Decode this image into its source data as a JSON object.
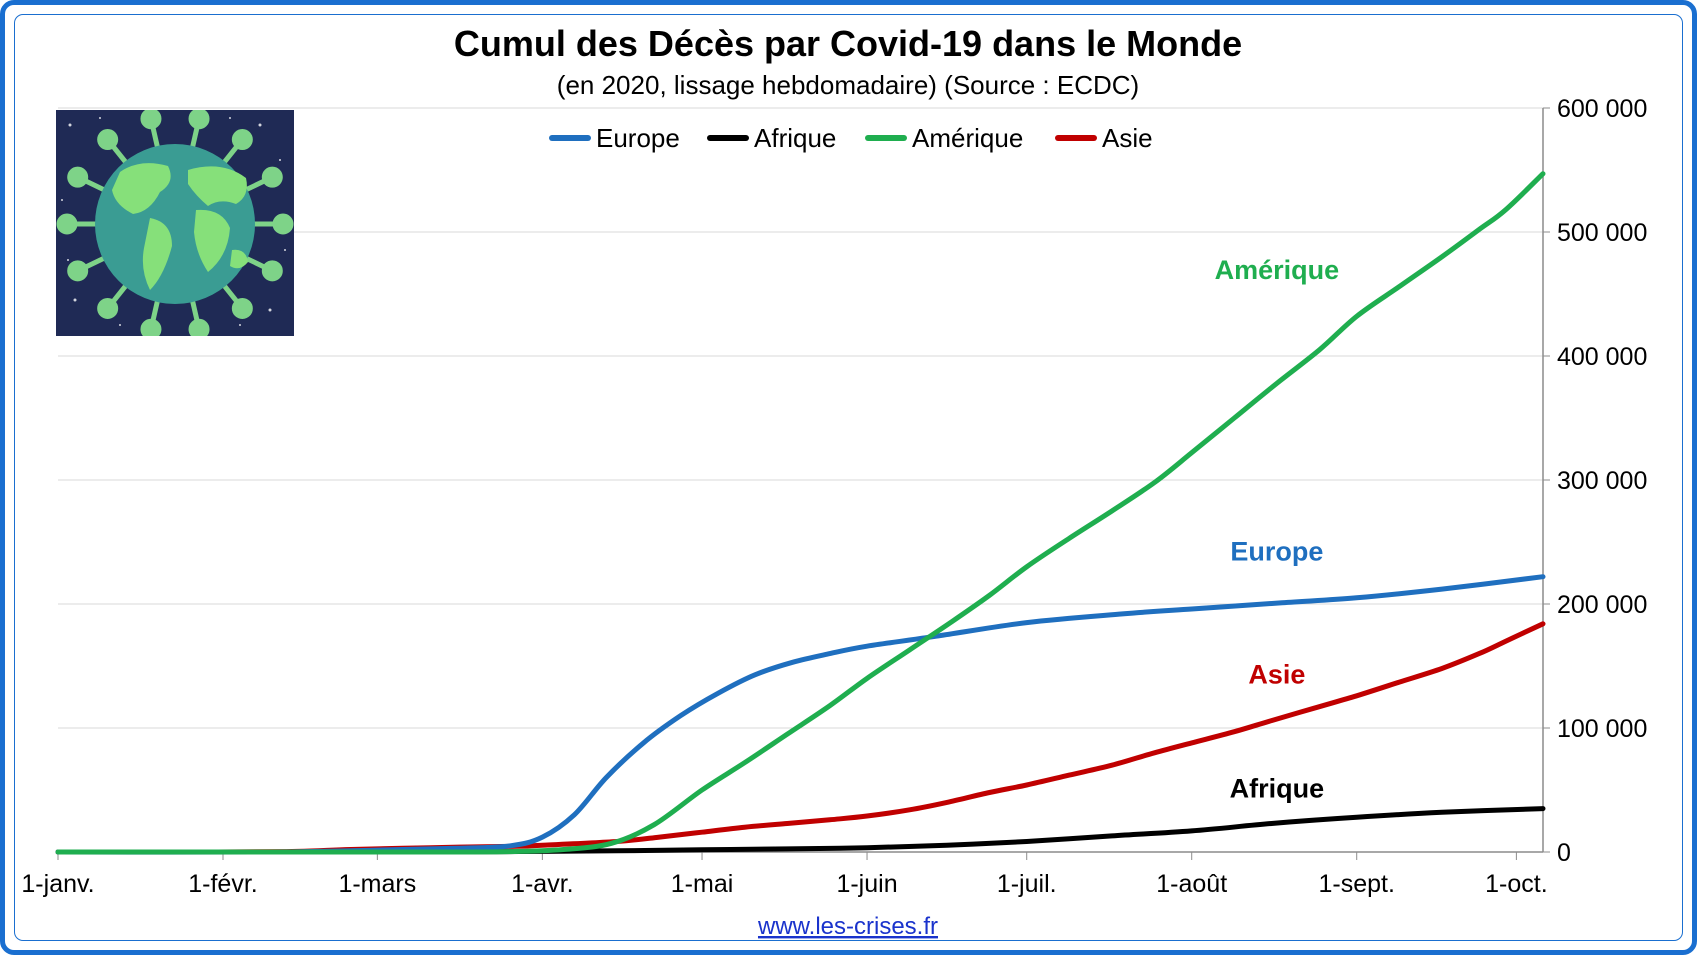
{
  "chart_data": {
    "type": "line",
    "title": "Cumul des Décès par Covid-19 dans le Monde",
    "subtitle": "(en 2020, lissage hebdomadaire) (Source : ECDC)",
    "xlabel": "",
    "ylabel": "",
    "x_ticks": [
      "1-janv.",
      "1-févr.",
      "1-mars",
      "1-avr.",
      "1-mai",
      "1-juin",
      "1-juil.",
      "1-août",
      "1-sept.",
      "1-oct."
    ],
    "x_tick_days": [
      0,
      31,
      60,
      91,
      121,
      152,
      182,
      213,
      244,
      274
    ],
    "x_range_days": [
      0,
      279
    ],
    "ylim": [
      0,
      600000
    ],
    "y_ticks": [
      0,
      100000,
      200000,
      300000,
      400000,
      500000,
      600000
    ],
    "y_tick_labels": [
      "0",
      "100 000",
      "200 000",
      "300 000",
      "400 000",
      "500 000",
      "600 000"
    ],
    "y_axis_side": "right",
    "grid": true,
    "legend_position": "top-center",
    "series": [
      {
        "name": "Europe",
        "color": "#1f6fbf",
        "label_pos_day": 229,
        "label_pos_value": 235000,
        "points": [
          [
            0,
            0
          ],
          [
            40,
            0
          ],
          [
            60,
            1500
          ],
          [
            75,
            3000
          ],
          [
            85,
            5000
          ],
          [
            91,
            12000
          ],
          [
            97,
            30000
          ],
          [
            103,
            60000
          ],
          [
            110,
            88000
          ],
          [
            117,
            110000
          ],
          [
            124,
            128000
          ],
          [
            131,
            143000
          ],
          [
            138,
            153000
          ],
          [
            145,
            160000
          ],
          [
            152,
            166000
          ],
          [
            165,
            174000
          ],
          [
            182,
            185000
          ],
          [
            200,
            192000
          ],
          [
            213,
            196000
          ],
          [
            230,
            201000
          ],
          [
            244,
            205000
          ],
          [
            260,
            212000
          ],
          [
            279,
            222000
          ]
        ]
      },
      {
        "name": "Afrique",
        "color": "#000000",
        "label_pos_day": 229,
        "label_pos_value": 44000,
        "points": [
          [
            0,
            0
          ],
          [
            60,
            0
          ],
          [
            80,
            200
          ],
          [
            91,
            500
          ],
          [
            105,
            1000
          ],
          [
            121,
            1800
          ],
          [
            137,
            2500
          ],
          [
            152,
            3500
          ],
          [
            167,
            5500
          ],
          [
            182,
            8500
          ],
          [
            198,
            13000
          ],
          [
            213,
            17000
          ],
          [
            228,
            23000
          ],
          [
            244,
            28000
          ],
          [
            260,
            32000
          ],
          [
            279,
            35000
          ]
        ]
      },
      {
        "name": "Amérique",
        "color": "#1fae4f",
        "label_pos_day": 229,
        "label_pos_value": 462000,
        "points": [
          [
            0,
            0
          ],
          [
            70,
            0
          ],
          [
            85,
            300
          ],
          [
            95,
            2000
          ],
          [
            104,
            7000
          ],
          [
            112,
            22000
          ],
          [
            121,
            50000
          ],
          [
            129,
            72000
          ],
          [
            137,
            95000
          ],
          [
            145,
            118000
          ],
          [
            152,
            140000
          ],
          [
            160,
            163000
          ],
          [
            168,
            186000
          ],
          [
            175,
            207000
          ],
          [
            182,
            230000
          ],
          [
            190,
            253000
          ],
          [
            198,
            275000
          ],
          [
            206,
            298000
          ],
          [
            213,
            322000
          ],
          [
            221,
            350000
          ],
          [
            229,
            378000
          ],
          [
            237,
            405000
          ],
          [
            244,
            432000
          ],
          [
            252,
            456000
          ],
          [
            260,
            480000
          ],
          [
            267,
            502000
          ],
          [
            272,
            518000
          ],
          [
            279,
            547000
          ]
        ]
      },
      {
        "name": "Asie",
        "color": "#c00000",
        "label_pos_day": 229,
        "label_pos_value": 136000,
        "points": [
          [
            0,
            0
          ],
          [
            30,
            0
          ],
          [
            45,
            500
          ],
          [
            55,
            2000
          ],
          [
            70,
            3500
          ],
          [
            85,
            4500
          ],
          [
            91,
            5500
          ],
          [
            105,
            8500
          ],
          [
            113,
            12000
          ],
          [
            121,
            16000
          ],
          [
            129,
            20000
          ],
          [
            137,
            23000
          ],
          [
            145,
            26000
          ],
          [
            152,
            29000
          ],
          [
            160,
            34000
          ],
          [
            167,
            40000
          ],
          [
            175,
            48000
          ],
          [
            182,
            54000
          ],
          [
            190,
            62000
          ],
          [
            198,
            70000
          ],
          [
            206,
            80000
          ],
          [
            213,
            88000
          ],
          [
            221,
            97000
          ],
          [
            228,
            106000
          ],
          [
            236,
            116000
          ],
          [
            244,
            126000
          ],
          [
            252,
            137000
          ],
          [
            260,
            148000
          ],
          [
            267,
            160000
          ],
          [
            272,
            170000
          ],
          [
            279,
            184000
          ]
        ]
      }
    ]
  },
  "source": {
    "text": "www.les-crises.fr"
  },
  "logo": {
    "icon": "globe-virus-icon"
  }
}
